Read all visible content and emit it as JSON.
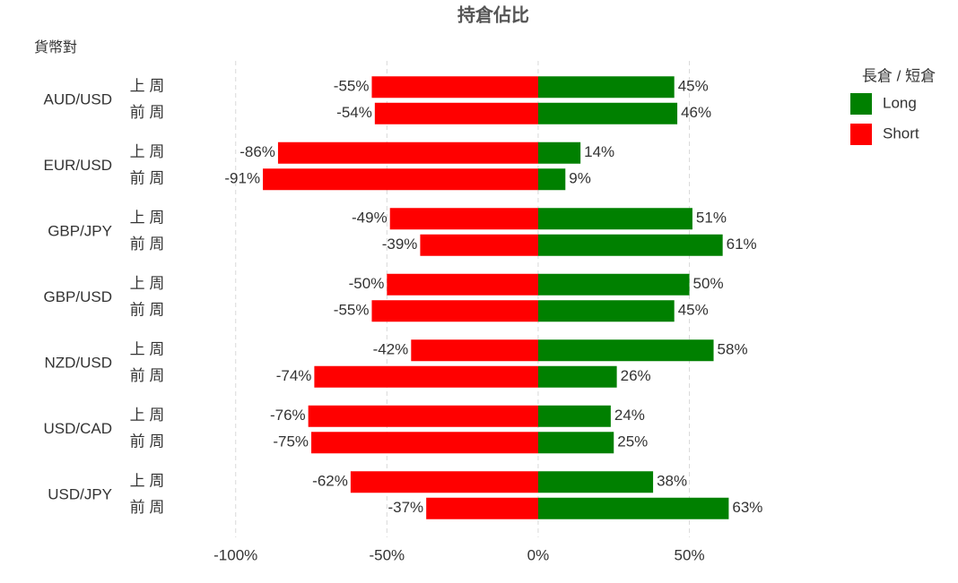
{
  "chart_data": {
    "type": "diverging-bar",
    "title": "持倉佔比",
    "y_label": "貨幣對",
    "legend_title": "長倉 / 短倉",
    "categories": [
      "AUD/USD",
      "EUR/USD",
      "GBP/JPY",
      "GBP/USD",
      "NZD/USD",
      "USD/CAD",
      "USD/JPY"
    ],
    "subcategories": [
      "上 周",
      "前 周"
    ],
    "series": [
      {
        "name": "Long",
        "color": "#008000",
        "values": [
          [
            45,
            46
          ],
          [
            14,
            9
          ],
          [
            51,
            61
          ],
          [
            50,
            45
          ],
          [
            58,
            26
          ],
          [
            24,
            25
          ],
          [
            38,
            63
          ]
        ],
        "value_labels": [
          [
            "45%",
            "46%"
          ],
          [
            "14%",
            "9%"
          ],
          [
            "51%",
            "61%"
          ],
          [
            "50%",
            "45%"
          ],
          [
            "58%",
            "26%"
          ],
          [
            "24%",
            "25%"
          ],
          [
            "38%",
            "63%"
          ]
        ]
      },
      {
        "name": "Short",
        "color": "#ff0000",
        "values": [
          [
            -55,
            -54
          ],
          [
            -86,
            -91
          ],
          [
            -49,
            -39
          ],
          [
            -50,
            -55
          ],
          [
            -42,
            -74
          ],
          [
            -76,
            -75
          ],
          [
            -62,
            -37
          ]
        ],
        "value_labels": [
          [
            "-55%",
            "-54%"
          ],
          [
            "-86%",
            "-91%"
          ],
          [
            "-49%",
            "-39%"
          ],
          [
            "-50%",
            "-55%"
          ],
          [
            "-42%",
            "-74%"
          ],
          [
            "-76%",
            "-75%"
          ],
          [
            "-62%",
            "-37%"
          ]
        ]
      }
    ],
    "xlim": [
      -110,
      70
    ],
    "xticks": [
      {
        "value": -100,
        "label": "-100%"
      },
      {
        "value": -50,
        "label": "-50%"
      },
      {
        "value": 0,
        "label": "0%"
      },
      {
        "value": 50,
        "label": "50%"
      }
    ],
    "grid": true,
    "legend": "right"
  }
}
